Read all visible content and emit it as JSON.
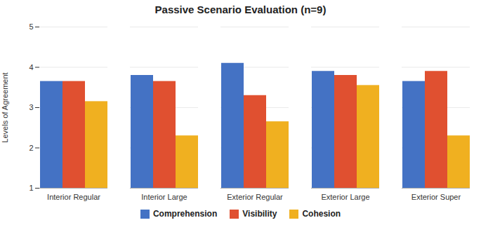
{
  "chart_data": {
    "type": "bar",
    "title": "Passive Scenario Evaluation (n=9)",
    "ylabel": "Levels of Agreement",
    "categories": [
      "Interior Regular",
      "Interior Large",
      "Exterior Regular",
      "Exterior Large",
      "Exterior Super"
    ],
    "series": [
      {
        "name": "Comprehension",
        "color": "#4472C4",
        "values": [
          3.65,
          3.8,
          4.1,
          3.9,
          3.65
        ]
      },
      {
        "name": "Visibility",
        "color": "#E05030",
        "values": [
          3.65,
          3.65,
          3.3,
          3.8,
          3.9
        ]
      },
      {
        "name": "Cohesion",
        "color": "#F0B020",
        "values": [
          3.15,
          2.3,
          2.65,
          3.55,
          2.3
        ]
      }
    ],
    "ylim": [
      1,
      5
    ],
    "yticks": [
      1,
      2,
      3,
      4,
      5
    ],
    "grid": true,
    "legend": "bottom"
  }
}
